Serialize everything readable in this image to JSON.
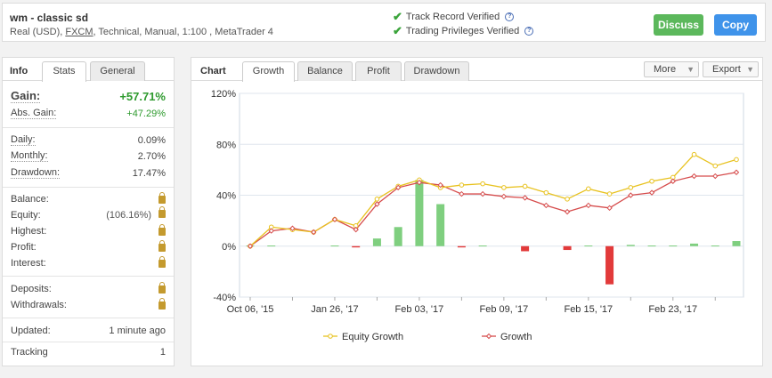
{
  "header": {
    "title": "wm - classic sd",
    "sub_pre": "Real (USD), ",
    "sub_broker": "FXCM",
    "sub_post": ", Technical, Manual, 1:100 , MetaTrader 4",
    "verify": [
      {
        "label": "Track Record Verified"
      },
      {
        "label": "Trading Privileges Verified"
      }
    ],
    "discuss_label": "Discuss",
    "copy_label": "Copy",
    "colors": {
      "discuss": "#5cb85c",
      "copy": "#3f93ea",
      "check": "#3aa43a"
    }
  },
  "left": {
    "tabs": [
      "Info",
      "Stats",
      "General"
    ],
    "gain_label": "Gain:",
    "gain_value": "+57.71%",
    "abs_gain_label": "Abs. Gain:",
    "abs_gain_value": "+47.29%",
    "daily_label": "Daily:",
    "daily_value": "0.09%",
    "monthly_label": "Monthly:",
    "monthly_value": "2.70%",
    "drawdown_label": "Drawdown:",
    "drawdown_value": "17.47%",
    "balance_label": "Balance:",
    "equity_label": "Equity:",
    "equity_value": "(106.16%)",
    "highest_label": "Highest:",
    "profit_label": "Profit:",
    "interest_label": "Interest:",
    "deposits_label": "Deposits:",
    "withdrawals_label": "Withdrawals:",
    "updated_label": "Updated:",
    "updated_value": "1 minute ago",
    "tracking_label": "Tracking",
    "tracking_value": "1"
  },
  "chart_panel": {
    "tabs": [
      "Chart",
      "Growth",
      "Balance",
      "Profit",
      "Drawdown"
    ],
    "more_label": "More",
    "export_label": "Export"
  },
  "chart_data": {
    "type": "line",
    "ylim": [
      -40,
      120
    ],
    "yticks": [
      "120%",
      "80%",
      "40%",
      "0%",
      "-40%"
    ],
    "ytick_values": [
      120,
      80,
      40,
      0,
      -40
    ],
    "xticks": [
      "Oct 06, '15",
      "Jan 26, '17",
      "Feb 03, '17",
      "Feb 09, '17",
      "Feb 15, '17",
      "Feb 23, '17"
    ],
    "xtick_index": [
      0,
      4,
      8,
      12,
      16,
      20
    ],
    "grid": true,
    "legend_position": "bottom",
    "series": [
      {
        "name": "Equity Growth",
        "color": "#e8c21f",
        "values": [
          0,
          15,
          13,
          11,
          21,
          16,
          37,
          47,
          52,
          46,
          48,
          49,
          46,
          47,
          42,
          37,
          45,
          41,
          46,
          51,
          54,
          72,
          63,
          68
        ]
      },
      {
        "name": "Growth",
        "color": "#d64c4c",
        "values": [
          0,
          12,
          14,
          11,
          21,
          13,
          33,
          46,
          50,
          48,
          41,
          41,
          39,
          38,
          32,
          27,
          32,
          30,
          40,
          42,
          51,
          55,
          55,
          58
        ]
      }
    ],
    "bars": [
      0.5,
      0.5,
      0,
      0,
      0.5,
      -1,
      6,
      15,
      52,
      33,
      -1,
      0.5,
      0,
      -4,
      0,
      -3,
      0.5,
      -30,
      1,
      0.5,
      0.5,
      2,
      0.5,
      4
    ],
    "bar_colors": {
      "positive": "#7fcf7f",
      "negative": "#e23a3a"
    }
  }
}
